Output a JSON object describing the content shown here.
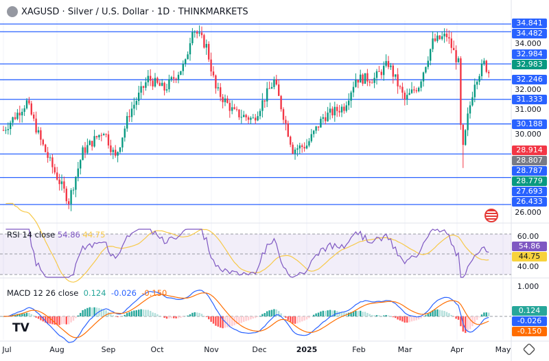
{
  "header": {
    "title": "XAGUSD · Silver / U.S. Dollar · 1D · THINKMARKETS",
    "icon": "silver-symbol-icon"
  },
  "price_axis": {
    "ticks": [
      "34.000",
      "32.000",
      "31.000",
      "30.000",
      "26.000"
    ],
    "labels": [
      {
        "text": "34.841",
        "color": "#2962ff",
        "price": 34.841
      },
      {
        "text": "34.482",
        "color": "#2962ff",
        "price": 34.482
      },
      {
        "text": "32.984",
        "color": "#2962ff",
        "price": 32.984
      },
      {
        "text": "32.983",
        "color": "#089981",
        "price": 32.983
      },
      {
        "text": "32.246",
        "color": "#2962ff",
        "price": 32.246
      },
      {
        "text": "31.333",
        "color": "#2962ff",
        "price": 31.333
      },
      {
        "text": "30.188",
        "color": "#2962ff",
        "price": 30.188
      },
      {
        "text": "28.914",
        "color": "#f23645",
        "price": 28.914
      },
      {
        "text": "28.807",
        "color": "#787b86",
        "price": 28.807
      },
      {
        "text": "28.787",
        "color": "#2962ff",
        "price": 28.787
      },
      {
        "text": "28.779",
        "color": "#089981",
        "price": 28.779
      },
      {
        "text": "27.693",
        "color": "#2962ff",
        "price": 27.693
      },
      {
        "text": "26.433",
        "color": "#2962ff",
        "price": 26.433
      }
    ]
  },
  "levels": [
    34.841,
    34.482,
    32.983,
    32.246,
    31.333,
    30.188,
    28.787,
    27.693,
    26.433
  ],
  "price_path": [
    [
      0,
      29.9
    ],
    [
      10,
      31.2
    ],
    [
      16,
      29.4
    ],
    [
      20,
      28.4
    ],
    [
      28,
      26.6
    ],
    [
      34,
      28.9
    ],
    [
      43,
      29.9
    ],
    [
      48,
      28.6
    ],
    [
      54,
      30.7
    ],
    [
      62,
      32.3
    ],
    [
      69,
      31.8
    ],
    [
      78,
      33.0
    ],
    [
      81,
      34.7
    ],
    [
      87,
      33.8
    ],
    [
      91,
      31.8
    ],
    [
      99,
      30.7
    ],
    [
      107,
      30.4
    ],
    [
      116,
      32.2
    ],
    [
      124,
      29.0
    ],
    [
      130,
      29.2
    ],
    [
      137,
      30.5
    ],
    [
      146,
      31.0
    ],
    [
      151,
      32.3
    ],
    [
      159,
      32.3
    ],
    [
      165,
      33.0
    ],
    [
      172,
      31.3
    ],
    [
      178,
      32.0
    ],
    [
      184,
      34.0
    ],
    [
      190,
      34.3
    ],
    [
      195,
      33.0
    ],
    [
      196,
      30.0
    ],
    [
      197,
      29.0
    ],
    [
      199,
      30.5
    ],
    [
      202,
      32.2
    ],
    [
      206,
      33.0
    ],
    [
      208,
      32.6
    ]
  ],
  "rsi": {
    "label": "RSI 14 close",
    "value": "54.86",
    "ma": "44.75",
    "ticks": [
      "60.00",
      "40.00"
    ],
    "color": "#7e57c2",
    "ma_color": "#f7c948"
  },
  "macd": {
    "label": "MACD 12 26 close",
    "hist": "0.124",
    "macd": "-0.026",
    "signal": "-0.150",
    "tick": "1.000"
  },
  "time_axis": [
    "Jul",
    "Aug",
    "Sep",
    "Oct",
    "Nov",
    "Dec",
    "2025",
    "Feb",
    "Mar",
    "Apr",
    "May"
  ],
  "icons": {
    "settings": "gear-icon",
    "logo": "tradingview-logo",
    "flag": "us-flag-icon"
  }
}
